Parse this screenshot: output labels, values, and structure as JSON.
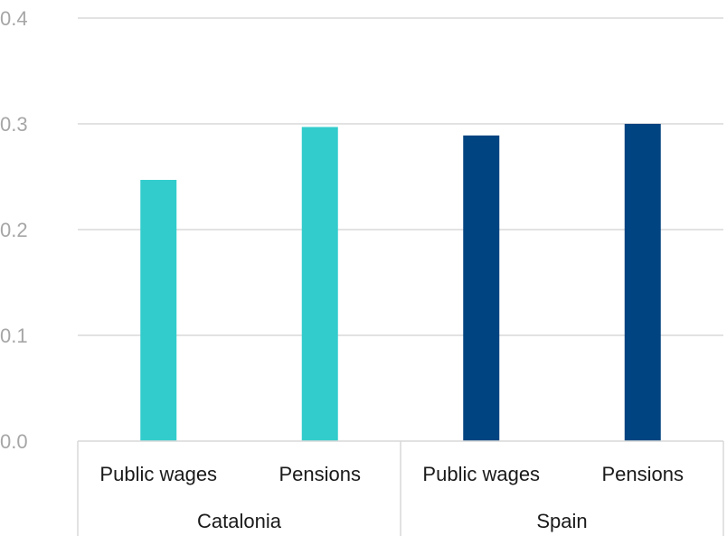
{
  "chart_data": {
    "type": "bar",
    "groups": [
      {
        "name": "Catalonia",
        "color": "#33cccc",
        "categories": [
          "Public wages",
          "Pensions"
        ],
        "values": [
          0.247,
          0.297
        ]
      },
      {
        "name": "Spain",
        "color": "#004481",
        "categories": [
          "Public wages",
          "Pensions"
        ],
        "values": [
          0.289,
          0.3
        ]
      }
    ],
    "yticks": [
      "0.0",
      "0.1",
      "0.2",
      "0.3",
      "0.4"
    ],
    "ylim": [
      0,
      0.4
    ],
    "grid": true,
    "legend": "none",
    "colors": {
      "gridline": "#d9d9d9",
      "tick_text": "#a6a6a6",
      "label_text": "#1a1a1a"
    }
  }
}
